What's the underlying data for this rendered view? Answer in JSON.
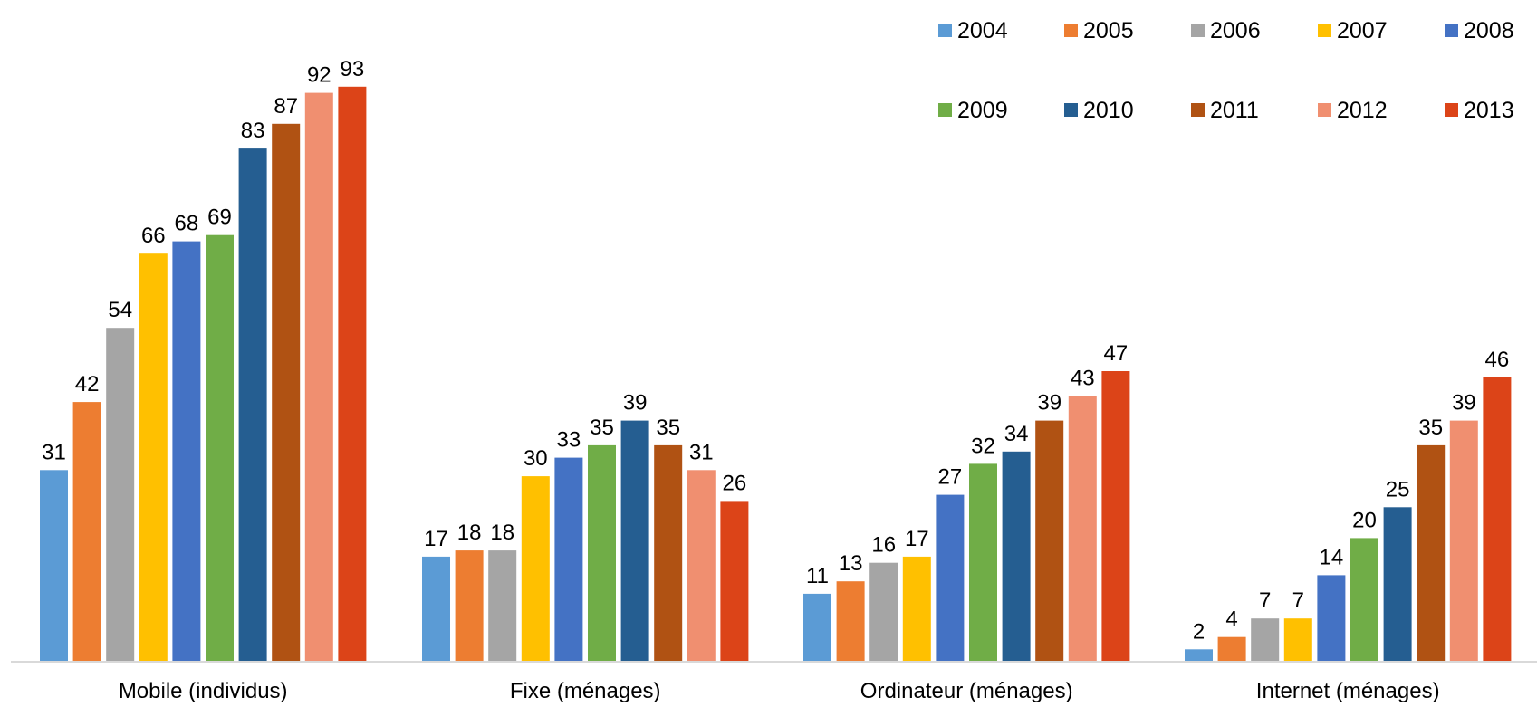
{
  "chart_data": {
    "type": "bar",
    "categories": [
      "Mobile (individus)",
      "Fixe (ménages)",
      "Ordinateur (ménages)",
      "Internet (ménages)"
    ],
    "series": [
      {
        "name": "2004",
        "color": "#5B9BD5",
        "values": [
          31,
          17,
          11,
          2
        ]
      },
      {
        "name": "2005",
        "color": "#ED7D31",
        "values": [
          42,
          18,
          13,
          4
        ]
      },
      {
        "name": "2006",
        "color": "#A5A5A5",
        "values": [
          54,
          18,
          16,
          7
        ]
      },
      {
        "name": "2007",
        "color": "#FFC000",
        "values": [
          66,
          30,
          17,
          7
        ]
      },
      {
        "name": "2008",
        "color": "#4472C4",
        "values": [
          68,
          33,
          27,
          14
        ]
      },
      {
        "name": "2009",
        "color": "#70AD47",
        "values": [
          69,
          35,
          32,
          20
        ]
      },
      {
        "name": "2010",
        "color": "#255E91",
        "values": [
          83,
          39,
          34,
          25
        ]
      },
      {
        "name": "2011",
        "color": "#B05213",
        "values": [
          87,
          35,
          39,
          35
        ]
      },
      {
        "name": "2012",
        "color": "#F08F70",
        "values": [
          92,
          31,
          43,
          39
        ]
      },
      {
        "name": "2013",
        "color": "#DC4418",
        "values": [
          93,
          26,
          47,
          46
        ]
      }
    ],
    "title": "",
    "xlabel": "",
    "ylabel": "",
    "ylim": [
      0,
      100
    ],
    "grid": false,
    "legend_position": "top-right",
    "data_labels": true
  }
}
